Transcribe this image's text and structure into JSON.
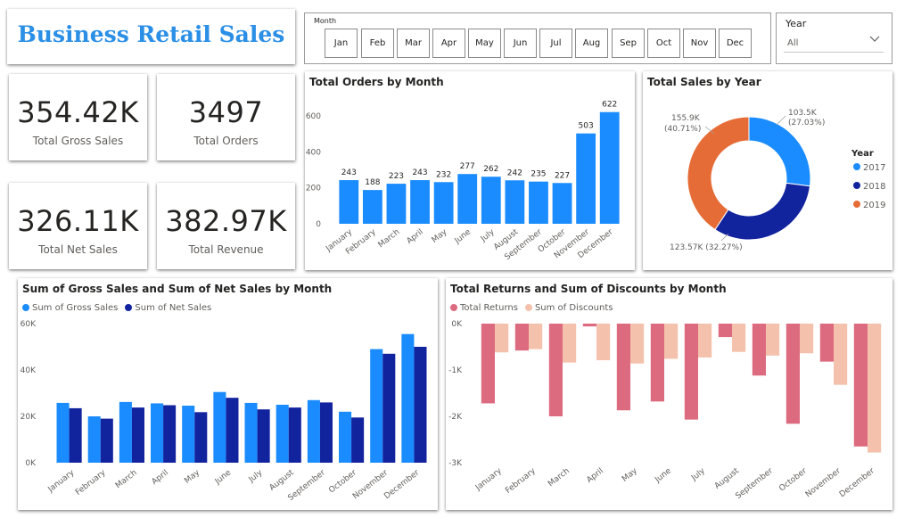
{
  "header": {
    "title": "Business Retail Sales"
  },
  "kpis": {
    "gross_sales": {
      "value": "354.42K",
      "label": "Total Gross Sales"
    },
    "orders": {
      "value": "3497",
      "label": "Total Orders"
    },
    "net_sales": {
      "value": "326.11K",
      "label": "Total Net Sales"
    },
    "revenue": {
      "value": "382.97K",
      "label": "Total Revenue"
    }
  },
  "month_slicer": {
    "label": "Month",
    "options": [
      "Jan",
      "Feb",
      "Mar",
      "Apr",
      "May",
      "Jun",
      "Jul",
      "Aug",
      "Sep",
      "Oct",
      "Nov",
      "Dec"
    ]
  },
  "year_slicer": {
    "label": "Year",
    "selected": "All"
  },
  "colors": {
    "title": "#2b8fe6",
    "primary_blue": "#1a8cff",
    "dark_blue": "#12239e",
    "orange": "#e66c37",
    "returns": "#dd6b7f",
    "discounts": "#f4c2ac"
  },
  "chart_data": [
    {
      "id": "orders",
      "type": "bar",
      "title": "Total Orders by Month",
      "categories": [
        "January",
        "February",
        "March",
        "April",
        "May",
        "June",
        "July",
        "August",
        "September",
        "October",
        "November",
        "December"
      ],
      "values": [
        243,
        188,
        223,
        243,
        232,
        277,
        262,
        242,
        235,
        227,
        503,
        622
      ],
      "ylim": [
        0,
        700
      ],
      "yticks": [
        0,
        200,
        400,
        600
      ],
      "ytick_labels": [
        "0",
        "200",
        "400",
        "600"
      ],
      "color": "#1a8cff",
      "data_labels": true,
      "grid": false
    },
    {
      "id": "sales_year",
      "type": "pie",
      "title": "Total Sales by Year",
      "legend_title": "Year",
      "legend_position": "right",
      "labels": [
        "2017",
        "2018",
        "2019"
      ],
      "values": [
        103.5,
        123.57,
        155.9
      ],
      "value_labels": [
        "103.5K",
        "123.57K (32.27%)",
        "155.9K"
      ],
      "pct_labels": [
        "(27.03%)",
        "",
        "(40.71%)"
      ],
      "colors": [
        "#1a8cff",
        "#12239e",
        "#e66c37"
      ],
      "donut": true
    },
    {
      "id": "gross_net",
      "type": "bar",
      "title": "Sum of Gross Sales and Sum of Net Sales by Month",
      "categories": [
        "January",
        "February",
        "March",
        "April",
        "May",
        "June",
        "July",
        "August",
        "September",
        "October",
        "November",
        "December"
      ],
      "series": [
        {
          "name": "Sum of Gross Sales",
          "color": "#1a8cff",
          "values": [
            25.8,
            20.0,
            26.2,
            25.6,
            24.6,
            30.5,
            25.8,
            25.0,
            27.0,
            22.0,
            49.0,
            55.5
          ]
        },
        {
          "name": "Sum of Net Sales",
          "color": "#12239e",
          "values": [
            23.5,
            19.0,
            23.8,
            24.8,
            21.8,
            28.0,
            23.0,
            23.8,
            26.0,
            19.5,
            47.0,
            50.0
          ]
        }
      ],
      "ylim": [
        0,
        60
      ],
      "yticks": [
        0,
        20,
        40,
        60
      ],
      "ytick_labels": [
        "0K",
        "20K",
        "40K",
        "60K"
      ],
      "legend_position": "top-left",
      "grid": false
    },
    {
      "id": "returns_discounts",
      "type": "bar",
      "title": "Total Returns and Sum of Discounts by Month",
      "categories": [
        "January",
        "February",
        "March",
        "April",
        "May",
        "June",
        "July",
        "August",
        "September",
        "October",
        "November",
        "December"
      ],
      "series": [
        {
          "name": "Total Returns",
          "color": "#dd6b7f",
          "values": [
            -1.72,
            -0.58,
            -2.0,
            -0.06,
            -1.87,
            -1.68,
            -2.07,
            -0.29,
            -1.12,
            -2.16,
            -0.82,
            -2.65
          ]
        },
        {
          "name": "Sum of Discounts",
          "color": "#f4c2ac",
          "values": [
            -0.62,
            -0.55,
            -0.84,
            -0.79,
            -0.86,
            -0.76,
            -0.73,
            -0.61,
            -0.69,
            -0.64,
            -1.32,
            -2.78
          ]
        }
      ],
      "ylim": [
        -3,
        0
      ],
      "yticks": [
        0,
        -1,
        -2,
        -3
      ],
      "ytick_labels": [
        "0K",
        "-1K",
        "-2K",
        "-3K"
      ],
      "legend_position": "top-left",
      "grid": false
    }
  ]
}
